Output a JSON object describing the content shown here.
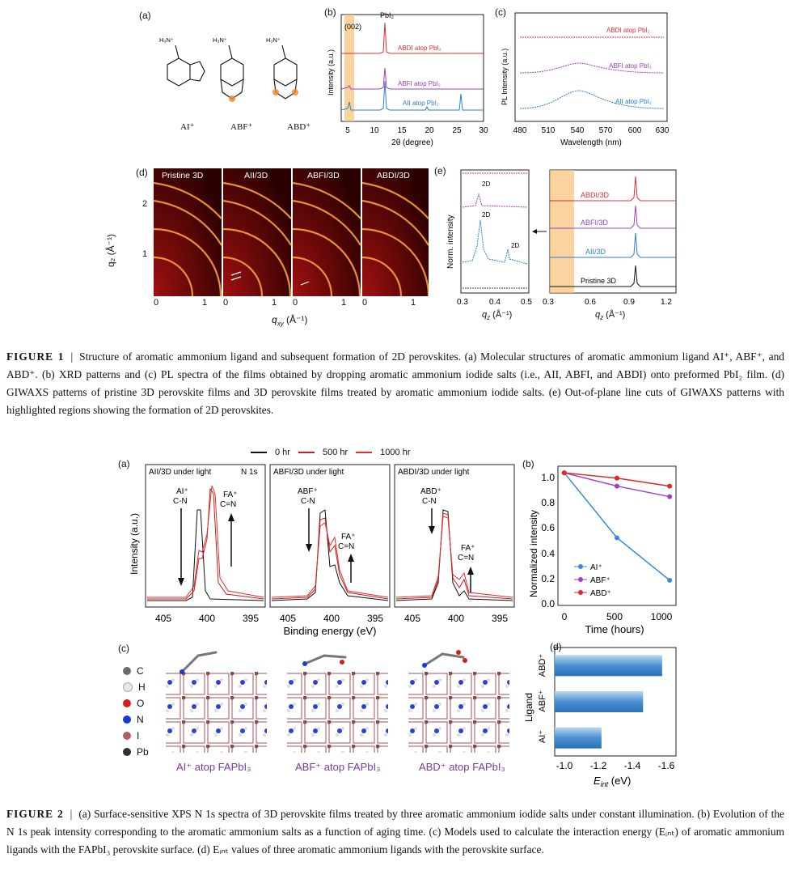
{
  "figure1": {
    "panels": {
      "a": "(a)",
      "b": "(b)",
      "c": "(c)",
      "d": "(d)",
      "e": "(e)"
    },
    "molecules": {
      "labels": [
        "AI⁺",
        "ABF⁺",
        "ABD⁺"
      ],
      "amine": "H₃N⁺"
    },
    "xrd": {
      "top_label": "PbI₂",
      "peak002": "(002)",
      "ylabel": "Intensity (a.u.)",
      "xlabel": "2θ (degree)",
      "xticks": [
        "5",
        "10",
        "15",
        "20",
        "25",
        "30"
      ],
      "series": [
        "ABDI atop PbI₂",
        "ABFI atop PbI₂",
        "AII atop PbI₂"
      ],
      "colors": [
        "#e03030",
        "#a040c0",
        "#2a7fc8"
      ]
    },
    "pl": {
      "ylabel": "PL Intensity (a.u.)",
      "xlabel": "Wavelength (nm)",
      "xticks": [
        "480",
        "510",
        "540",
        "570",
        "600",
        "630"
      ],
      "series": [
        "ABDI atop PbI₂",
        "ABFI atop PbI₂",
        "AII atop PbI₂"
      ]
    },
    "giwaxs": {
      "titles": [
        "Pristine 3D",
        "AII/3D",
        "ABFI/3D",
        "ABDI/3D"
      ],
      "ylabel": "q₂ (Å⁻¹)",
      "ylabel_sub": "z",
      "xlabel_base": "q",
      "xlabel_sub": "xy",
      "xlabel_unit": " (Å⁻¹)",
      "yticks": [
        "2",
        "1"
      ],
      "xticks": [
        "0",
        "1"
      ]
    },
    "linecut": {
      "ylabel": "Norm. intensity",
      "xlabel_base": "q",
      "xlabel_sub": "z",
      "xlabel_unit": " (Å⁻¹)",
      "left_xticks": [
        "0.3",
        "0.4",
        "0.5"
      ],
      "right_xticks": [
        "0.3",
        "0.6",
        "0.9",
        "1.2"
      ],
      "marks": [
        "2D",
        "2D",
        "2D"
      ],
      "series": [
        "ABDI/3D",
        "ABFI/3D",
        "AII/3D",
        "Pristine 3D"
      ]
    },
    "caption": {
      "label": "FIGURE 1",
      "text": "Structure of aromatic ammonium ligand and subsequent formation of 2D perovskites. (a) Molecular structures of aromatic ammonium ligand AI⁺, ABF⁺, and ABD⁺. (b) XRD patterns and (c) PL spectra of the films obtained by dropping aromatic ammonium iodide salts (i.e., AII, ABFI, and ABDI) onto preformed PbI₂ film. (d) GIWAXS patterns of pristine 3D perovskite films and 3D perovskite films treated by aromatic ammonium iodide salts. (e) Out-of-plane line cuts of GIWAXS patterns with highlighted regions showing the formation of 2D perovskites."
    }
  },
  "figure2": {
    "panels": {
      "a": "(a)",
      "b": "(b)",
      "c": "(c)",
      "d": "(d)"
    },
    "legend": [
      "0 hr",
      "500 hr",
      "1000 hr"
    ],
    "legend_colors": [
      "#111111",
      "#c81e1e",
      "#e03030"
    ],
    "xps": {
      "titles": [
        "AII/3D under light",
        "ABFI/3D under light",
        "ABDI/3D under light"
      ],
      "n1s": "N 1s",
      "ylabel": "Intensity (a.u.)",
      "xlabel": "Binding energy (eV)",
      "xticks": [
        "405",
        "400",
        "395"
      ],
      "ligand_labels": [
        [
          "AI⁺",
          "C-N"
        ],
        [
          "ABF⁺",
          "C-N"
        ],
        [
          "ABD⁺",
          "C-N"
        ]
      ],
      "fa_label": [
        "FA⁺",
        "C=N"
      ]
    },
    "aging": {
      "ylabel": "Normalized intensity",
      "xlabel": "Time (hours)",
      "yticks": [
        "1.0",
        "0.8",
        "0.6",
        "0.4",
        "0.2",
        "0.0"
      ],
      "xticks": [
        "0",
        "500",
        "1000"
      ],
      "chart_data": {
        "type": "line",
        "x": [
          0,
          500,
          1000
        ],
        "series": [
          {
            "name": "AI⁺",
            "values": [
              1.0,
              0.51,
              0.19
            ],
            "color": "#3a8ad8"
          },
          {
            "name": "ABF⁺",
            "values": [
              1.0,
              0.9,
              0.82
            ],
            "color": "#a040c8"
          },
          {
            "name": "ABD⁺",
            "values": [
              1.0,
              0.96,
              0.9
            ],
            "color": "#e02828"
          }
        ],
        "xlabel": "Time (hours)",
        "ylabel": "Normalized intensity",
        "ylim": [
          0,
          1.05
        ],
        "xlim": [
          -60,
          1060
        ]
      }
    },
    "models": {
      "atoms": [
        "C",
        "H",
        "O",
        "N",
        "I",
        "Pb"
      ],
      "atom_colors": [
        "#6a6a6a",
        "#e8e8e8",
        "#d22020",
        "#1a3ad8",
        "#b06060",
        "#303030"
      ],
      "labels": [
        "AI⁺ atop FAPbI₃",
        "ABF⁺ atop FAPbI₃",
        "ABD⁺ atop FAPbI₃"
      ]
    },
    "eint": {
      "ylabel": "Ligand",
      "xlabel_base": "E",
      "xlabel_sub": "int",
      "xlabel_unit": " (eV)",
      "xticks": [
        "-1.0",
        "-1.2",
        "-1.4",
        "-1.6"
      ],
      "chart_data": {
        "type": "bar",
        "categories": [
          "ABD⁺",
          "ABF⁺",
          "AI⁺"
        ],
        "values": [
          -1.57,
          -1.46,
          -1.22
        ],
        "xlim": [
          -0.95,
          -1.65
        ]
      }
    },
    "caption": {
      "label": "FIGURE 2",
      "text": "(a) Surface-sensitive XPS N 1s spectra of 3D perovskite films treated by three aromatic ammonium iodide salts under constant illumination. (b) Evolution of the N 1s peak intensity corresponding to the aromatic ammonium salts as a function of aging time. (c) Models used to calculate the interaction energy (Eᵢₙₜ) of aromatic ammonium ligands with the FAPbI₃ perovskite surface. (d) Eᵢₙₜ values of three aromatic ammonium ligands with the perovskite surface."
    }
  }
}
